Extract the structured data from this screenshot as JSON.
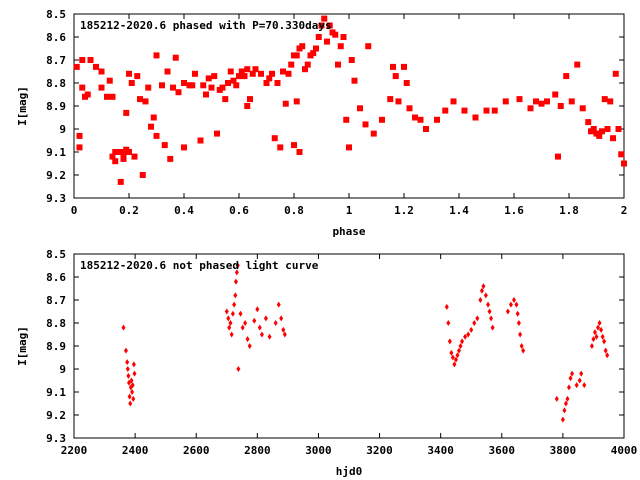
{
  "chart_data": [
    {
      "type": "scatter",
      "title": "185212-2020.6 phased with P=70.330days",
      "xlabel": "phase",
      "ylabel": "I[mag]",
      "xlim": [
        0,
        2
      ],
      "ylim": [
        9.3,
        8.5
      ],
      "y_inverted": true,
      "xticks": [
        "0",
        "0.2",
        "0.4",
        "0.6",
        "0.8",
        "1",
        "1.2",
        "1.4",
        "1.6",
        "1.8",
        "2"
      ],
      "yticks": [
        "8.5",
        "8.6",
        "8.7",
        "8.8",
        "8.9",
        "9",
        "9.1",
        "9.2",
        "9.3"
      ],
      "marker_color": "#ff0000",
      "grid": false,
      "series": [
        {
          "points": [
            [
              0.01,
              8.73
            ],
            [
              0.02,
              9.03
            ],
            [
              0.02,
              9.08
            ],
            [
              0.03,
              8.7
            ],
            [
              0.03,
              8.82
            ],
            [
              0.04,
              8.86
            ],
            [
              0.05,
              8.85
            ],
            [
              0.06,
              8.7
            ],
            [
              0.08,
              8.73
            ],
            [
              0.1,
              8.75
            ],
            [
              0.1,
              8.82
            ],
            [
              0.12,
              8.86
            ],
            [
              0.13,
              8.79
            ],
            [
              0.14,
              8.86
            ],
            [
              0.14,
              9.12
            ],
            [
              0.15,
              9.1
            ],
            [
              0.15,
              9.14
            ],
            [
              0.16,
              9.1
            ],
            [
              0.17,
              9.23
            ],
            [
              0.17,
              9.1
            ],
            [
              0.18,
              9.11
            ],
            [
              0.18,
              9.13
            ],
            [
              0.19,
              8.93
            ],
            [
              0.19,
              9.09
            ],
            [
              0.2,
              9.1
            ],
            [
              0.2,
              8.76
            ],
            [
              0.21,
              8.8
            ],
            [
              0.22,
              9.12
            ],
            [
              0.23,
              8.77
            ],
            [
              0.24,
              8.87
            ],
            [
              0.25,
              9.2
            ],
            [
              0.26,
              8.88
            ],
            [
              0.27,
              8.82
            ],
            [
              0.28,
              8.99
            ],
            [
              0.29,
              8.95
            ],
            [
              0.3,
              9.03
            ],
            [
              0.3,
              8.68
            ],
            [
              0.32,
              8.81
            ],
            [
              0.33,
              9.07
            ],
            [
              0.34,
              8.75
            ],
            [
              0.35,
              9.13
            ],
            [
              0.36,
              8.82
            ],
            [
              0.37,
              8.69
            ],
            [
              0.38,
              8.84
            ],
            [
              0.4,
              8.8
            ],
            [
              0.4,
              9.08
            ],
            [
              0.42,
              8.81
            ],
            [
              0.43,
              8.81
            ],
            [
              0.44,
              8.76
            ],
            [
              0.46,
              9.05
            ],
            [
              0.47,
              8.81
            ],
            [
              0.48,
              8.85
            ],
            [
              0.49,
              8.78
            ],
            [
              0.5,
              8.82
            ],
            [
              0.51,
              8.77
            ],
            [
              0.52,
              9.02
            ],
            [
              0.53,
              8.83
            ],
            [
              0.54,
              8.82
            ],
            [
              0.55,
              8.87
            ],
            [
              0.56,
              8.8
            ],
            [
              0.57,
              8.75
            ],
            [
              0.58,
              8.79
            ],
            [
              0.59,
              8.81
            ],
            [
              0.6,
              8.77
            ],
            [
              0.61,
              8.75
            ],
            [
              0.62,
              8.77
            ],
            [
              0.63,
              8.74
            ],
            [
              0.63,
              8.9
            ],
            [
              0.64,
              8.87
            ],
            [
              0.65,
              8.76
            ],
            [
              0.66,
              8.74
            ],
            [
              0.68,
              8.76
            ],
            [
              0.7,
              8.8
            ],
            [
              0.71,
              8.78
            ],
            [
              0.72,
              8.76
            ],
            [
              0.73,
              9.04
            ],
            [
              0.74,
              8.8
            ],
            [
              0.75,
              9.08
            ],
            [
              0.76,
              8.75
            ],
            [
              0.77,
              8.89
            ],
            [
              0.78,
              8.76
            ],
            [
              0.79,
              8.72
            ],
            [
              0.8,
              8.68
            ],
            [
              0.8,
              9.07
            ],
            [
              0.81,
              8.88
            ],
            [
              0.81,
              8.68
            ],
            [
              0.82,
              8.65
            ],
            [
              0.82,
              9.1
            ],
            [
              0.83,
              8.64
            ],
            [
              0.84,
              8.74
            ],
            [
              0.85,
              8.72
            ],
            [
              0.86,
              8.68
            ],
            [
              0.87,
              8.67
            ],
            [
              0.88,
              8.65
            ],
            [
              0.89,
              8.6
            ],
            [
              0.9,
              8.55
            ],
            [
              0.91,
              8.52
            ],
            [
              0.92,
              8.62
            ],
            [
              0.93,
              8.55
            ],
            [
              0.94,
              8.58
            ],
            [
              0.95,
              8.59
            ],
            [
              0.96,
              8.72
            ],
            [
              0.97,
              8.64
            ],
            [
              0.98,
              8.6
            ],
            [
              0.99,
              8.96
            ],
            [
              1.0,
              9.08
            ],
            [
              1.01,
              8.7
            ],
            [
              1.02,
              8.79
            ],
            [
              1.04,
              8.91
            ],
            [
              1.06,
              8.98
            ],
            [
              1.07,
              8.64
            ],
            [
              1.09,
              9.02
            ],
            [
              1.12,
              8.96
            ],
            [
              1.15,
              8.87
            ],
            [
              1.16,
              8.73
            ],
            [
              1.17,
              8.77
            ],
            [
              1.18,
              8.88
            ],
            [
              1.2,
              8.73
            ],
            [
              1.21,
              8.8
            ],
            [
              1.22,
              8.91
            ],
            [
              1.24,
              8.95
            ],
            [
              1.26,
              8.96
            ],
            [
              1.28,
              9.0
            ],
            [
              1.32,
              8.96
            ],
            [
              1.35,
              8.92
            ],
            [
              1.38,
              8.88
            ],
            [
              1.42,
              8.92
            ],
            [
              1.46,
              8.95
            ],
            [
              1.5,
              8.92
            ],
            [
              1.53,
              8.92
            ],
            [
              1.57,
              8.88
            ],
            [
              1.62,
              8.87
            ],
            [
              1.66,
              8.91
            ],
            [
              1.68,
              8.88
            ],
            [
              1.7,
              8.89
            ],
            [
              1.72,
              8.88
            ],
            [
              1.75,
              8.85
            ],
            [
              1.76,
              9.12
            ],
            [
              1.77,
              8.9
            ],
            [
              1.79,
              8.77
            ],
            [
              1.81,
              8.88
            ],
            [
              1.83,
              8.72
            ],
            [
              1.85,
              8.91
            ],
            [
              1.87,
              8.97
            ],
            [
              1.88,
              9.01
            ],
            [
              1.89,
              9.0
            ],
            [
              1.9,
              9.02
            ],
            [
              1.91,
              9.03
            ],
            [
              1.92,
              9.01
            ],
            [
              1.93,
              8.87
            ],
            [
              1.94,
              9.0
            ],
            [
              1.95,
              8.88
            ],
            [
              1.96,
              9.04
            ],
            [
              1.97,
              8.76
            ],
            [
              1.98,
              9.0
            ],
            [
              1.99,
              9.11
            ],
            [
              2.0,
              9.15
            ]
          ]
        }
      ]
    },
    {
      "type": "scatter",
      "title": "185212-2020.6 not phased light curve",
      "xlabel": "hjd0",
      "ylabel": "I[mag]",
      "xlim": [
        2200,
        4000
      ],
      "ylim": [
        9.3,
        8.5
      ],
      "y_inverted": true,
      "xticks": [
        "2200",
        "2400",
        "2600",
        "2800",
        "3000",
        "3200",
        "3400",
        "3600",
        "3800",
        "4000"
      ],
      "yticks": [
        "8.5",
        "8.6",
        "8.7",
        "8.8",
        "8.9",
        "9",
        "9.1",
        "9.2",
        "9.3"
      ],
      "marker_color": "#ff0000",
      "grid": false,
      "series": [
        {
          "points": [
            [
              2362,
              8.82
            ],
            [
              2370,
              8.92
            ],
            [
              2374,
              8.97
            ],
            [
              2376,
              9.0
            ],
            [
              2378,
              9.03
            ],
            [
              2380,
              9.06
            ],
            [
              2382,
              9.12
            ],
            [
              2384,
              9.15
            ],
            [
              2386,
              9.08
            ],
            [
              2388,
              9.05
            ],
            [
              2390,
              9.1
            ],
            [
              2392,
              9.07
            ],
            [
              2394,
              9.13
            ],
            [
              2396,
              8.98
            ],
            [
              2398,
              9.02
            ],
            [
              2700,
              8.75
            ],
            [
              2705,
              8.78
            ],
            [
              2708,
              8.82
            ],
            [
              2712,
              8.8
            ],
            [
              2716,
              8.85
            ],
            [
              2720,
              8.76
            ],
            [
              2724,
              8.72
            ],
            [
              2728,
              8.68
            ],
            [
              2730,
              8.62
            ],
            [
              2733,
              8.58
            ],
            [
              2736,
              8.55
            ],
            [
              2738,
              9.0
            ],
            [
              2745,
              8.76
            ],
            [
              2752,
              8.82
            ],
            [
              2760,
              8.8
            ],
            [
              2768,
              8.87
            ],
            [
              2775,
              8.9
            ],
            [
              2790,
              8.79
            ],
            [
              2800,
              8.74
            ],
            [
              2808,
              8.82
            ],
            [
              2815,
              8.85
            ],
            [
              2828,
              8.78
            ],
            [
              2840,
              8.86
            ],
            [
              2860,
              8.8
            ],
            [
              2870,
              8.72
            ],
            [
              2878,
              8.78
            ],
            [
              2885,
              8.83
            ],
            [
              2890,
              8.85
            ],
            [
              3420,
              8.73
            ],
            [
              3425,
              8.8
            ],
            [
              3430,
              8.88
            ],
            [
              3435,
              8.93
            ],
            [
              3440,
              8.95
            ],
            [
              3445,
              8.98
            ],
            [
              3450,
              8.96
            ],
            [
              3455,
              8.94
            ],
            [
              3460,
              8.92
            ],
            [
              3465,
              8.9
            ],
            [
              3470,
              8.88
            ],
            [
              3480,
              8.86
            ],
            [
              3490,
              8.85
            ],
            [
              3500,
              8.83
            ],
            [
              3510,
              8.8
            ],
            [
              3520,
              8.78
            ],
            [
              3530,
              8.7
            ],
            [
              3535,
              8.66
            ],
            [
              3540,
              8.64
            ],
            [
              3548,
              8.68
            ],
            [
              3555,
              8.72
            ],
            [
              3560,
              8.75
            ],
            [
              3565,
              8.78
            ],
            [
              3570,
              8.82
            ],
            [
              3620,
              8.75
            ],
            [
              3630,
              8.72
            ],
            [
              3640,
              8.7
            ],
            [
              3648,
              8.72
            ],
            [
              3652,
              8.76
            ],
            [
              3656,
              8.8
            ],
            [
              3660,
              8.85
            ],
            [
              3665,
              8.9
            ],
            [
              3670,
              8.92
            ],
            [
              3780,
              9.13
            ],
            [
              3800,
              9.22
            ],
            [
              3805,
              9.18
            ],
            [
              3810,
              9.15
            ],
            [
              3815,
              9.13
            ],
            [
              3820,
              9.08
            ],
            [
              3825,
              9.04
            ],
            [
              3830,
              9.02
            ],
            [
              3845,
              9.07
            ],
            [
              3855,
              9.05
            ],
            [
              3860,
              9.02
            ],
            [
              3870,
              9.07
            ],
            [
              3895,
              8.9
            ],
            [
              3900,
              8.87
            ],
            [
              3905,
              8.84
            ],
            [
              3910,
              8.86
            ],
            [
              3915,
              8.82
            ],
            [
              3920,
              8.8
            ],
            [
              3925,
              8.83
            ],
            [
              3930,
              8.86
            ],
            [
              3935,
              8.88
            ],
            [
              3940,
              8.92
            ],
            [
              3945,
              8.94
            ]
          ]
        }
      ]
    }
  ]
}
